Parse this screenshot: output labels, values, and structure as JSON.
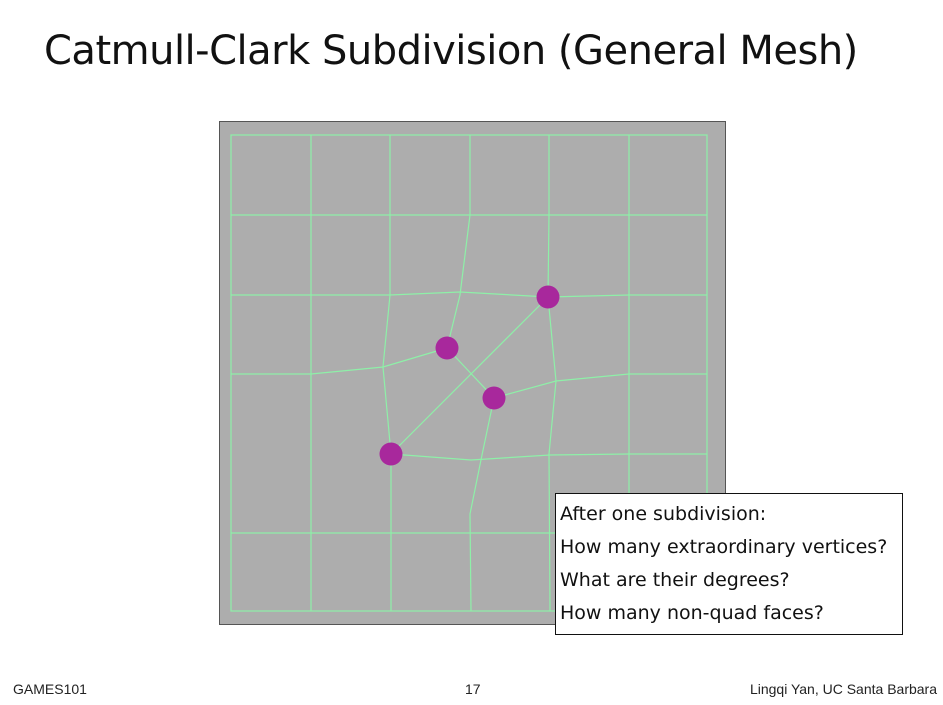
{
  "slide": {
    "title": "Catmull-Clark Subdivision (General Mesh)",
    "page_number": "17"
  },
  "footer": {
    "left": "GAMES101",
    "right": "Lingqi Yan, UC Santa Barbara"
  },
  "questions": {
    "lines": [
      "After one subdivision:",
      "How many extraordinary vertices?",
      "What are their degrees?",
      "How many non-quad faces?"
    ]
  },
  "colors": {
    "panel_background": "#adadad",
    "mesh_edge": "#8ef0a8",
    "extraordinary_vertex": "#a8289c"
  }
}
